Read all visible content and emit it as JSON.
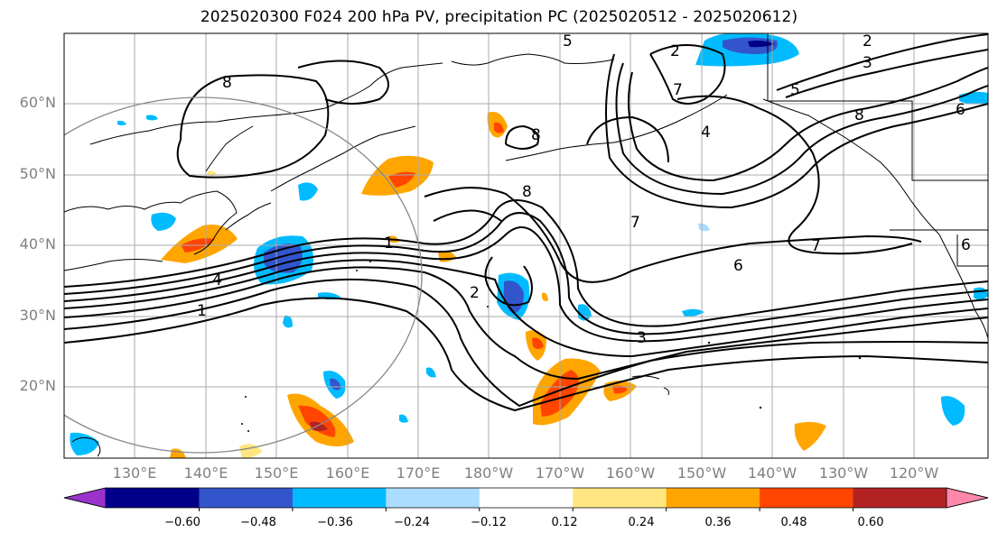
{
  "title": "2025020300 F024 200 hPa PV, precipitation PC (2025020512 - 2025020612)",
  "map": {
    "lat_labels": [
      "60°N",
      "50°N",
      "40°N",
      "30°N",
      "20°N"
    ],
    "lon_labels": [
      "130°E",
      "140°E",
      "150°E",
      "160°E",
      "170°E",
      "180°W",
      "170°W",
      "160°W",
      "150°W",
      "140°W",
      "130°W",
      "120°W"
    ],
    "grid": true,
    "contour_labels": [
      "8",
      "5",
      "2",
      "2",
      "3",
      "5",
      "8",
      "7",
      "4",
      "8",
      "8",
      "7",
      "6",
      "7",
      "6",
      "3",
      "2",
      "4",
      "1",
      "1",
      "6"
    ]
  },
  "colorbar": {
    "tick_labels": [
      "−0.60",
      "−0.48",
      "−0.36",
      "−0.24",
      "−0.12",
      "0.12",
      "0.24",
      "0.36",
      "0.48",
      "0.60"
    ],
    "colors": [
      "#9933cc",
      "#000088",
      "#3355cc",
      "#00bbff",
      "#aaddff",
      "#ffffff",
      "#ffe680",
      "#ffa500",
      "#ff4500",
      "#b22222",
      "#ff88aa"
    ]
  },
  "colors": {
    "contour": "#000000",
    "coast": "#000000",
    "gridline": "#aaaaaa",
    "circle": "#888888"
  }
}
